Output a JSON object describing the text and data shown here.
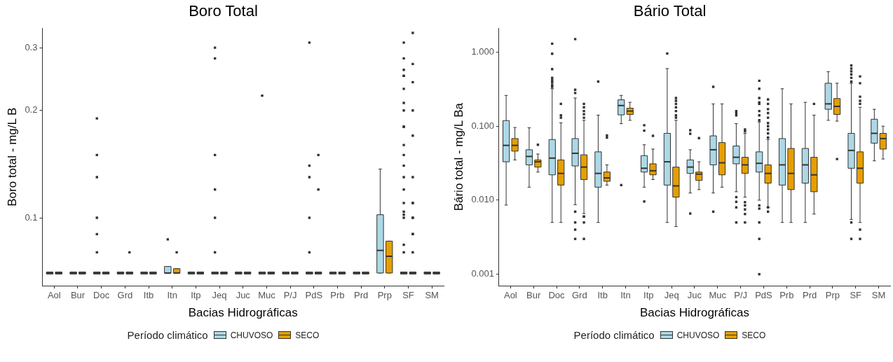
{
  "chart_data": [
    {
      "type": "box",
      "title": "Boro Total",
      "xlabel": "Bacias Hidrográficas",
      "ylabel": "Boro total - mg/L B",
      "legend_title": "Período climático",
      "legend": "bottom",
      "log": true,
      "grid": false,
      "marker": "square",
      "ylim": [
        0.0645,
        0.34
      ],
      "yticks": [
        0.1,
        0.2,
        0.3
      ],
      "categories": [
        "Aol",
        "Bur",
        "Doc",
        "Grd",
        "Itb",
        "Itn",
        "Itp",
        "Jeq",
        "Juc",
        "Muc",
        "P/J",
        "PdS",
        "Prb",
        "Prd",
        "Prp",
        "SF",
        "SM"
      ],
      "series": [
        {
          "name": "CHUVOSO",
          "color": "#add8e6",
          "boxes": [
            {
              "low": 0.07,
              "q1": 0.07,
              "median": 0.07,
              "q3": 0.07,
              "high": 0.07
            },
            {
              "low": 0.07,
              "q1": 0.07,
              "median": 0.07,
              "q3": 0.07,
              "high": 0.07
            },
            {
              "low": 0.07,
              "q1": 0.07,
              "median": 0.07,
              "q3": 0.07,
              "high": 0.07,
              "outliers": [
                0.19,
                0.15,
                0.13,
                0.1,
                0.09,
                0.08
              ]
            },
            {
              "low": 0.07,
              "q1": 0.07,
              "median": 0.07,
              "q3": 0.07,
              "high": 0.07
            },
            {
              "low": 0.07,
              "q1": 0.07,
              "median": 0.07,
              "q3": 0.07,
              "high": 0.07
            },
            {
              "low": 0.07,
              "q1": 0.07,
              "median": 0.07,
              "q3": 0.073,
              "high": 0.073,
              "outliers": [
                0.087
              ]
            },
            {
              "low": 0.07,
              "q1": 0.07,
              "median": 0.07,
              "q3": 0.07,
              "high": 0.07
            },
            {
              "low": 0.07,
              "q1": 0.07,
              "median": 0.07,
              "q3": 0.07,
              "high": 0.07,
              "outliers": [
                0.3,
                0.28,
                0.15,
                0.12,
                0.1,
                0.08
              ]
            },
            {
              "low": 0.07,
              "q1": 0.07,
              "median": 0.07,
              "q3": 0.07,
              "high": 0.07
            },
            {
              "low": 0.07,
              "q1": 0.07,
              "median": 0.07,
              "q3": 0.07,
              "high": 0.07,
              "outliers": [
                0.22
              ]
            },
            {
              "low": 0.07,
              "q1": 0.07,
              "median": 0.07,
              "q3": 0.07,
              "high": 0.07
            },
            {
              "low": 0.07,
              "q1": 0.07,
              "median": 0.07,
              "q3": 0.07,
              "high": 0.07,
              "outliers": [
                0.31,
                0.14,
                0.13,
                0.1,
                0.08
              ]
            },
            {
              "low": 0.07,
              "q1": 0.07,
              "median": 0.07,
              "q3": 0.07,
              "high": 0.07
            },
            {
              "low": 0.07,
              "q1": 0.07,
              "median": 0.07,
              "q3": 0.07,
              "high": 0.07
            },
            {
              "low": 0.07,
              "q1": 0.07,
              "median": 0.081,
              "q3": 0.102,
              "high": 0.137
            },
            {
              "low": 0.07,
              "q1": 0.07,
              "median": 0.07,
              "q3": 0.07,
              "high": 0.07,
              "outliers": [
                0.31,
                0.28,
                0.26,
                0.25,
                0.25,
                0.23,
                0.21,
                0.2,
                0.18,
                0.18,
                0.16,
                0.15,
                0.14,
                0.13,
                0.12,
                0.11,
                0.104,
                0.102,
                0.1,
                0.084,
                0.08
              ]
            },
            {
              "low": 0.07,
              "q1": 0.07,
              "median": 0.07,
              "q3": 0.07,
              "high": 0.07
            }
          ]
        },
        {
          "name": "SECO",
          "color": "#e69f00",
          "boxes": [
            {
              "low": 0.07,
              "q1": 0.07,
              "median": 0.07,
              "q3": 0.07,
              "high": 0.07
            },
            {
              "low": 0.07,
              "q1": 0.07,
              "median": 0.07,
              "q3": 0.07,
              "high": 0.07
            },
            {
              "low": 0.07,
              "q1": 0.07,
              "median": 0.07,
              "q3": 0.07,
              "high": 0.07
            },
            {
              "low": 0.07,
              "q1": 0.07,
              "median": 0.07,
              "q3": 0.07,
              "high": 0.07,
              "outliers": [
                0.08
              ]
            },
            {
              "low": 0.07,
              "q1": 0.07,
              "median": 0.07,
              "q3": 0.07,
              "high": 0.07
            },
            {
              "low": 0.07,
              "q1": 0.07,
              "median": 0.07,
              "q3": 0.072,
              "high": 0.072,
              "outliers": [
                0.08
              ]
            },
            {
              "low": 0.07,
              "q1": 0.07,
              "median": 0.07,
              "q3": 0.07,
              "high": 0.07
            },
            {
              "low": 0.07,
              "q1": 0.07,
              "median": 0.07,
              "q3": 0.07,
              "high": 0.07
            },
            {
              "low": 0.07,
              "q1": 0.07,
              "median": 0.07,
              "q3": 0.07,
              "high": 0.07
            },
            {
              "low": 0.07,
              "q1": 0.07,
              "median": 0.07,
              "q3": 0.07,
              "high": 0.07
            },
            {
              "low": 0.07,
              "q1": 0.07,
              "median": 0.07,
              "q3": 0.07,
              "high": 0.07
            },
            {
              "low": 0.07,
              "q1": 0.07,
              "median": 0.07,
              "q3": 0.07,
              "high": 0.07,
              "outliers": [
                0.15,
                0.12
              ]
            },
            {
              "low": 0.07,
              "q1": 0.07,
              "median": 0.07,
              "q3": 0.07,
              "high": 0.07
            },
            {
              "low": 0.07,
              "q1": 0.07,
              "median": 0.07,
              "q3": 0.07,
              "high": 0.07
            },
            {
              "low": 0.07,
              "q1": 0.07,
              "median": 0.078,
              "q3": 0.086,
              "high": 0.086
            },
            {
              "low": 0.07,
              "q1": 0.07,
              "median": 0.07,
              "q3": 0.07,
              "high": 0.07,
              "outliers": [
                0.33,
                0.27,
                0.24,
                0.2,
                0.17,
                0.13,
                0.11,
                0.11,
                0.1,
                0.1,
                0.09,
                0.09,
                0.08
              ]
            },
            {
              "low": 0.07,
              "q1": 0.07,
              "median": 0.07,
              "q3": 0.07,
              "high": 0.07
            }
          ]
        }
      ]
    },
    {
      "type": "box",
      "title": "Bário Total",
      "xlabel": "Bacias Hidrográficas",
      "ylabel": "Bário total - mg/L Ba",
      "legend_title": "Período climático",
      "legend": "bottom",
      "log": true,
      "grid": false,
      "marker": "square",
      "ylim": [
        0.0007,
        2.1
      ],
      "yticks": [
        {
          "value": 0.001,
          "label": "0.001"
        },
        {
          "value": 0.01,
          "label": "0.010"
        },
        {
          "value": 0.1,
          "label": "0.100"
        },
        {
          "value": 1,
          "label": "1.000"
        }
      ],
      "categories": [
        "Aol",
        "Bur",
        "Doc",
        "Grd",
        "Itb",
        "Itn",
        "Itp",
        "Jeq",
        "Juc",
        "Muc",
        "P/J",
        "PdS",
        "Prb",
        "Prd",
        "Prp",
        "SF",
        "SM"
      ],
      "series": [
        {
          "name": "CHUVOSO",
          "color": "#add8e6",
          "boxes": [
            {
              "low": 0.0086,
              "q1": 0.033,
              "median": 0.055,
              "q3": 0.119,
              "high": 0.26
            },
            {
              "low": 0.015,
              "q1": 0.03,
              "median": 0.039,
              "q3": 0.048,
              "high": 0.095
            },
            {
              "low": 0.005,
              "q1": 0.022,
              "median": 0.037,
              "q3": 0.066,
              "high": 0.32,
              "outliers": [
                1.3,
                0.95,
                0.59,
                0.45,
                0.42,
                0.39,
                0.36,
                0.34
              ]
            },
            {
              "low": 0.0087,
              "q1": 0.029,
              "median": 0.043,
              "q3": 0.068,
              "high": 0.24,
              "outliers": [
                1.5,
                0.31,
                0.28,
                0.007,
                0.005,
                0.004,
                0.003
              ]
            },
            {
              "low": 0.005,
              "q1": 0.015,
              "median": 0.023,
              "q3": 0.045,
              "high": 0.141,
              "outliers": [
                0.4
              ]
            },
            {
              "low": 0.108,
              "q1": 0.142,
              "median": 0.19,
              "q3": 0.227,
              "high": 0.26,
              "outliers": [
                0.016
              ]
            },
            {
              "low": 0.015,
              "q1": 0.024,
              "median": 0.027,
              "q3": 0.04,
              "high": 0.056,
              "outliers": [
                0.103,
                0.087,
                0.0096
              ]
            },
            {
              "low": 0.005,
              "q1": 0.016,
              "median": 0.033,
              "q3": 0.08,
              "high": 0.6,
              "outliers": [
                0.96
              ]
            },
            {
              "low": 0.0125,
              "q1": 0.023,
              "median": 0.028,
              "q3": 0.035,
              "high": 0.048,
              "outliers": [
                0.088,
                0.079,
                0.0066
              ]
            },
            {
              "low": 0.0125,
              "q1": 0.03,
              "median": 0.048,
              "q3": 0.074,
              "high": 0.2,
              "outliers": [
                0.34,
                0.007
              ]
            },
            {
              "low": 0.013,
              "q1": 0.031,
              "median": 0.038,
              "q3": 0.054,
              "high": 0.108,
              "outliers": [
                0.16,
                0.15,
                0.14,
                0.011,
                0.0095,
                0.008,
                0.005
              ]
            },
            {
              "low": 0.01,
              "q1": 0.024,
              "median": 0.0315,
              "q3": 0.045,
              "high": 0.114,
              "outliers": [
                0.41,
                0.32,
                0.24,
                0.21,
                0.2,
                0.16,
                0.14,
                0.12,
                0.0085,
                0.0077,
                0.005,
                0.003,
                0.001
              ]
            },
            {
              "low": 0.005,
              "q1": 0.016,
              "median": 0.03,
              "q3": 0.068,
              "high": 0.32
            },
            {
              "low": 0.005,
              "q1": 0.017,
              "median": 0.03,
              "q3": 0.05,
              "high": 0.21
            },
            {
              "low": 0.12,
              "q1": 0.169,
              "median": 0.2,
              "q3": 0.38,
              "high": 0.545
            },
            {
              "low": 0.0055,
              "q1": 0.027,
              "median": 0.047,
              "q3": 0.08,
              "high": 0.38,
              "outliers": [
                0.66,
                0.6,
                0.55,
                0.5,
                0.45,
                0.4,
                0.005,
                0.003
              ]
            },
            {
              "low": 0.034,
              "q1": 0.059,
              "median": 0.08,
              "q3": 0.124,
              "high": 0.169
            }
          ]
        },
        {
          "name": "SECO",
          "color": "#e69f00",
          "boxes": [
            {
              "low": 0.035,
              "q1": 0.046,
              "median": 0.055,
              "q3": 0.068,
              "high": 0.096
            },
            {
              "low": 0.024,
              "q1": 0.028,
              "median": 0.033,
              "q3": 0.035,
              "high": 0.042,
              "outliers": [
                0.056
              ]
            },
            {
              "low": 0.005,
              "q1": 0.016,
              "median": 0.023,
              "q3": 0.035,
              "high": 0.111,
              "outliers": [
                0.2,
                0.14,
                0.13
              ]
            },
            {
              "low": 0.0066,
              "q1": 0.019,
              "median": 0.028,
              "q3": 0.041,
              "high": 0.12,
              "outliers": [
                0.2,
                0.18,
                0.16,
                0.145,
                0.13,
                0.006,
                0.006,
                0.005,
                0.003
              ]
            },
            {
              "low": 0.016,
              "q1": 0.018,
              "median": 0.02,
              "q3": 0.024,
              "high": 0.03,
              "outliers": [
                0.075,
                0.07
              ]
            },
            {
              "low": 0.12,
              "q1": 0.144,
              "median": 0.16,
              "q3": 0.175,
              "high": 0.21
            },
            {
              "low": 0.019,
              "q1": 0.022,
              "median": 0.025,
              "q3": 0.031,
              "high": 0.049,
              "outliers": [
                0.074
              ]
            },
            {
              "low": 0.0044,
              "q1": 0.011,
              "median": 0.0156,
              "q3": 0.028,
              "high": 0.12,
              "outliers": [
                0.24,
                0.22,
                0.2,
                0.18,
                0.16,
                0.14,
                0.13
              ]
            },
            {
              "low": 0.0139,
              "q1": 0.0185,
              "median": 0.0225,
              "q3": 0.024,
              "high": 0.033,
              "outliers": [
                0.069
              ]
            },
            {
              "low": 0.015,
              "q1": 0.022,
              "median": 0.032,
              "q3": 0.06,
              "high": 0.2
            },
            {
              "low": 0.011,
              "q1": 0.023,
              "median": 0.03,
              "q3": 0.038,
              "high": 0.08,
              "outliers": [
                0.09,
                0.085,
                0.0094,
                0.0085,
                0.0075,
                0.0065,
                0.005
              ]
            },
            {
              "low": 0.008,
              "q1": 0.017,
              "median": 0.023,
              "q3": 0.03,
              "high": 0.066,
              "outliers": [
                0.23,
                0.2,
                0.17,
                0.15,
                0.13,
                0.11,
                0.1,
                0.09,
                0.08,
                0.07,
                0.008,
                0.007
              ]
            },
            {
              "low": 0.005,
              "q1": 0.0139,
              "median": 0.023,
              "q3": 0.05,
              "high": 0.2
            },
            {
              "low": 0.0065,
              "q1": 0.013,
              "median": 0.022,
              "q3": 0.038,
              "high": 0.141,
              "outliers": [
                0.2
              ]
            },
            {
              "low": 0.117,
              "q1": 0.144,
              "median": 0.185,
              "q3": 0.236,
              "high": 0.38,
              "outliers": [
                0.036
              ]
            },
            {
              "low": 0.005,
              "q1": 0.017,
              "median": 0.027,
              "q3": 0.045,
              "high": 0.18,
              "outliers": [
                0.47,
                0.38,
                0.25,
                0.22,
                0.2,
                0.004,
                0.003
              ]
            },
            {
              "low": 0.036,
              "q1": 0.049,
              "median": 0.068,
              "q3": 0.08,
              "high": 0.1
            }
          ]
        }
      ]
    }
  ]
}
